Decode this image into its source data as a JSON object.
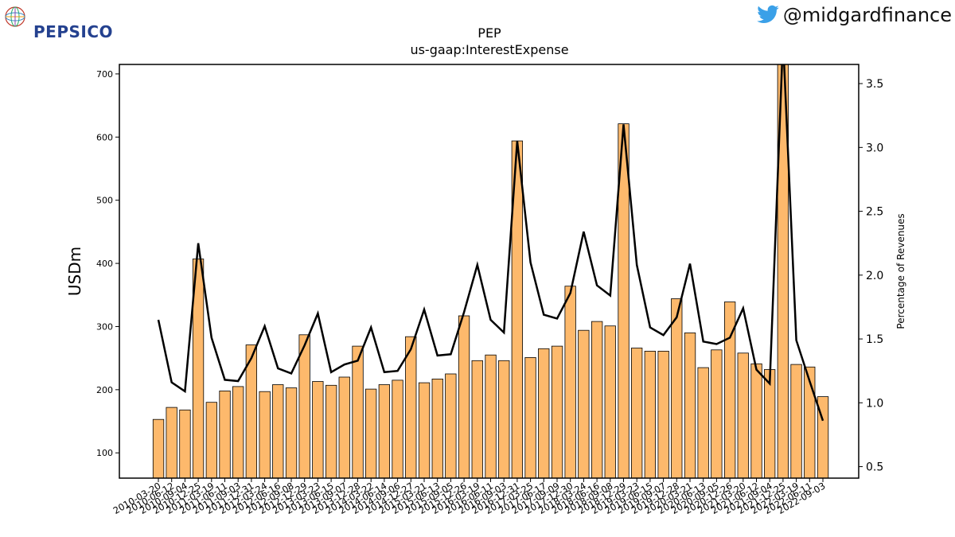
{
  "brand": {
    "name": "PEPSICO",
    "logo_icon": "globe-icon"
  },
  "social": {
    "icon": "twitter-bird-icon",
    "handle": "@midgardfinance"
  },
  "chart_data": {
    "type": "bar",
    "title": "PEP",
    "subtitle": "us-gaap:InterestExpense",
    "ylabel": "USDm",
    "y2label": "Percentage of Revenues",
    "ylim": [
      60,
      715
    ],
    "y2lim": [
      0.41,
      3.65
    ],
    "yticks": [
      100,
      200,
      300,
      400,
      500,
      600,
      700
    ],
    "y2ticks": [
      0.5,
      1.0,
      1.5,
      2.0,
      2.5,
      3.0,
      3.5
    ],
    "bar_color": "#fdb96c",
    "line_color": "#000000",
    "categories": [
      "2010-03-20",
      "2010-06-12",
      "2010-09-04",
      "2010-12-25",
      "2011-03-19",
      "2011-06-11",
      "2011-09-03",
      "2011-12-31",
      "2012-03-24",
      "2012-06-16",
      "2012-09-08",
      "2012-12-29",
      "2013-03-23",
      "2013-06-15",
      "2013-09-07",
      "2013-12-28",
      "2014-03-22",
      "2014-06-14",
      "2014-09-06",
      "2014-12-27",
      "2015-03-21",
      "2015-06-13",
      "2015-09-05",
      "2015-12-26",
      "2016-03-19",
      "2016-06-11",
      "2016-09-03",
      "2016-12-31",
      "2017-03-25",
      "2017-06-17",
      "2017-09-09",
      "2017-12-30",
      "2018-03-24",
      "2018-06-16",
      "2018-09-08",
      "2018-12-29",
      "2019-03-23",
      "2019-06-15",
      "2019-09-07",
      "2019-12-28",
      "2020-03-21",
      "2020-06-13",
      "2020-09-05",
      "2020-12-26",
      "2021-03-20",
      "2021-06-12",
      "2021-09-04",
      "2021-12-25",
      "2022-03-19",
      "2022-06-11",
      "2022-09-03"
    ],
    "series": [
      {
        "kind": "bar",
        "axis": "left",
        "values": [
          153,
          172,
          168,
          407,
          180,
          198,
          205,
          271,
          197,
          208,
          203,
          287,
          213,
          207,
          220,
          269,
          201,
          208,
          215,
          284,
          211,
          217,
          225,
          317,
          246,
          255,
          246,
          594,
          251,
          265,
          269,
          364,
          294,
          308,
          301,
          621,
          266,
          261,
          261,
          344,
          290,
          235,
          263,
          339,
          258,
          241,
          232,
          720,
          240,
          236,
          189
        ]
      },
      {
        "kind": "line",
        "axis": "right",
        "values": [
          1.65,
          1.16,
          1.09,
          2.25,
          1.51,
          1.18,
          1.17,
          1.35,
          1.6,
          1.27,
          1.23,
          1.45,
          1.7,
          1.24,
          1.3,
          1.33,
          1.59,
          1.24,
          1.25,
          1.42,
          1.73,
          1.37,
          1.38,
          1.71,
          2.08,
          1.65,
          1.55,
          3.05,
          2.1,
          1.69,
          1.66,
          1.86,
          2.34,
          1.92,
          1.84,
          3.18,
          2.08,
          1.59,
          1.53,
          1.67,
          2.09,
          1.48,
          1.46,
          1.51,
          1.74,
          1.26,
          1.15,
          3.85,
          1.49,
          1.17,
          0.86
        ]
      }
    ]
  }
}
